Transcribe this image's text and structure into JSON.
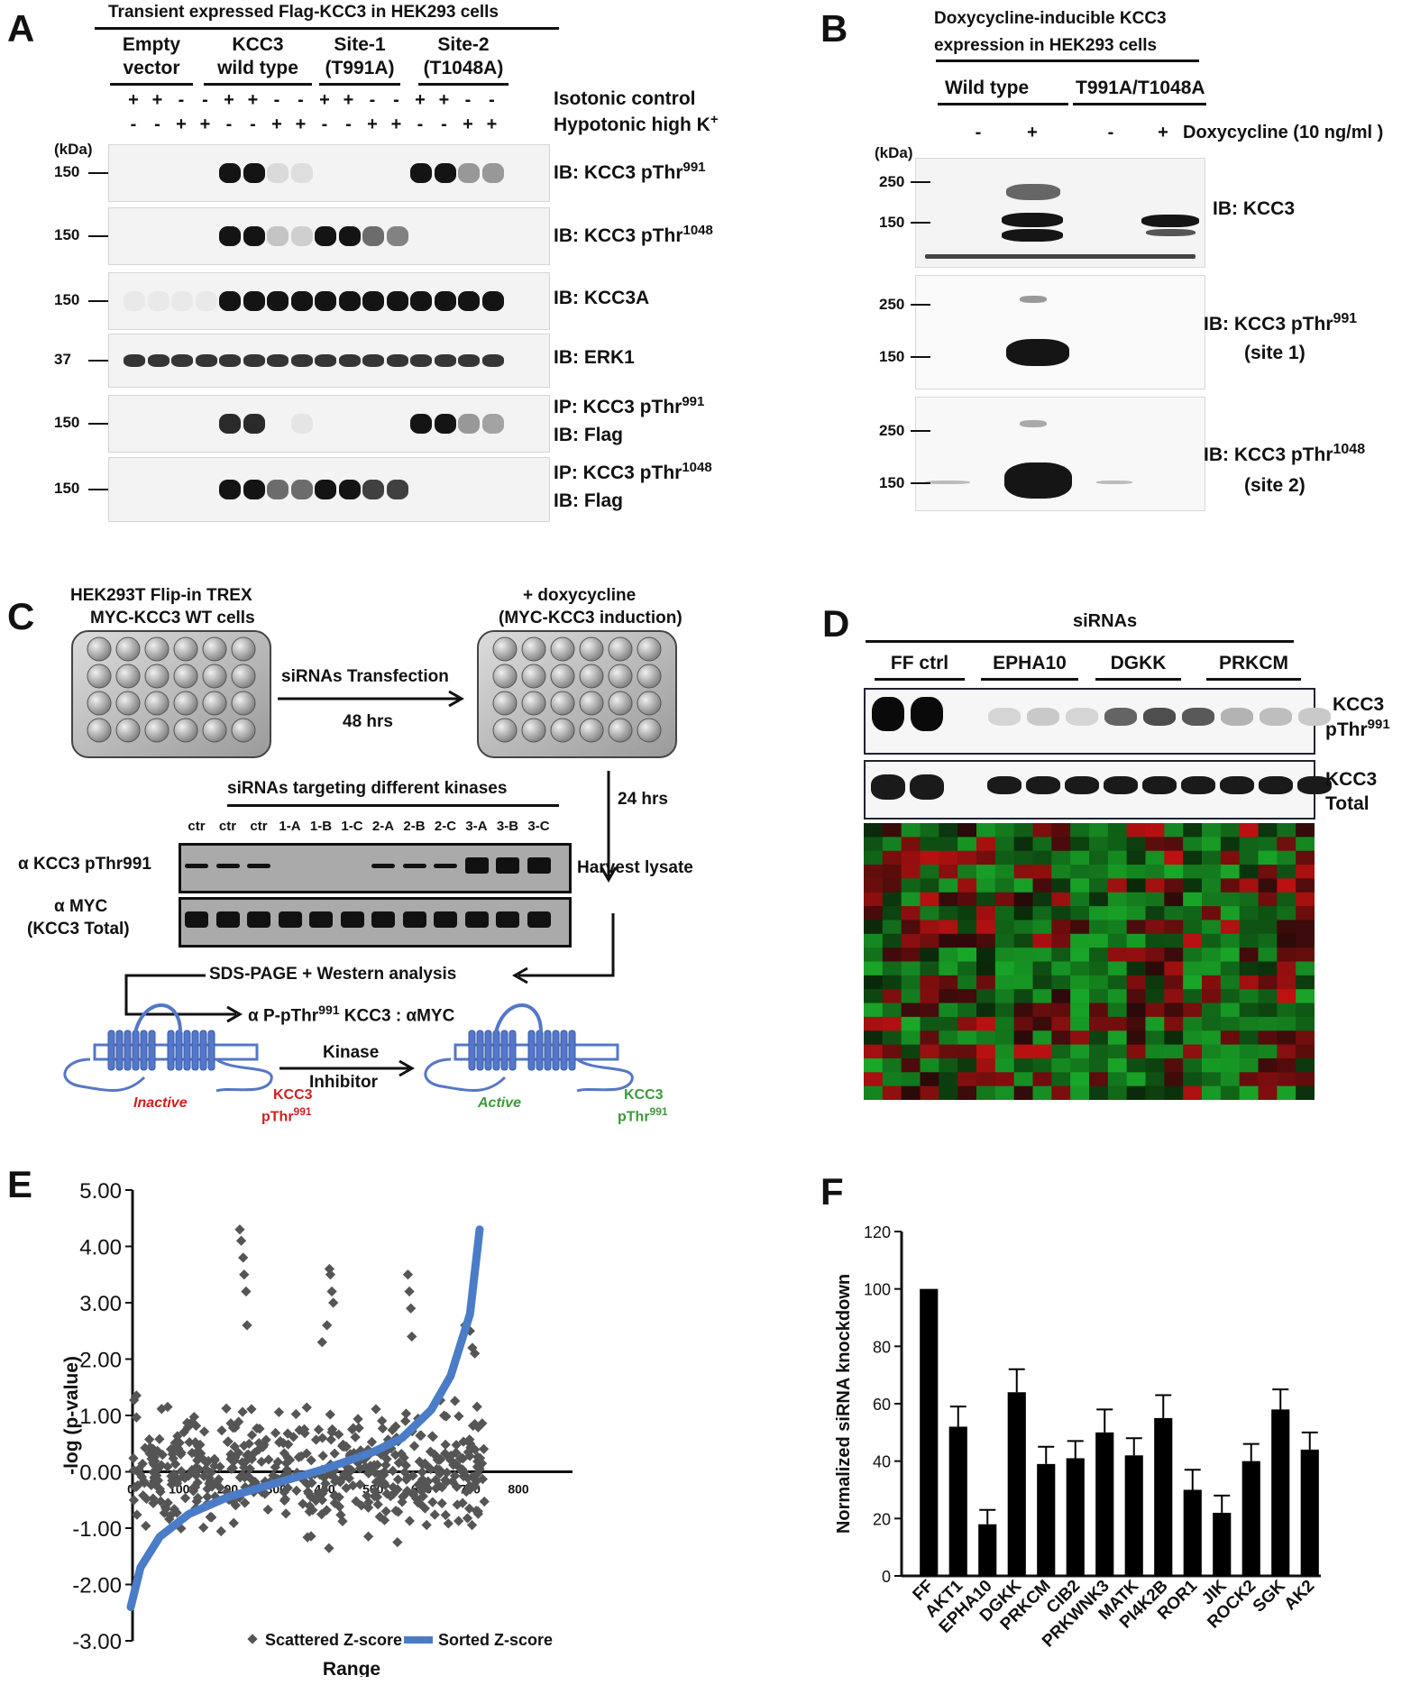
{
  "panels": {
    "A": "A",
    "B": "B",
    "C": "C",
    "D": "D",
    "E": "E",
    "F": "F"
  },
  "panel_a": {
    "title": "Transient expressed Flag-KCC3 in HEK293 cells",
    "groups": [
      {
        "line1": "Empty",
        "line2": "vector"
      },
      {
        "line1": "KCC3",
        "line2": "wild type"
      },
      {
        "line1": "Site-1",
        "line2": "(T991A)"
      },
      {
        "line1": "Site-2",
        "line2": "(T1048A)"
      }
    ],
    "isotonic_signs": [
      "+",
      "+",
      "-",
      "-",
      "+",
      "+",
      "-",
      "-",
      "+",
      "+",
      "-",
      "-",
      "+",
      "+",
      "-",
      "-"
    ],
    "hypotonic_signs": [
      "-",
      "-",
      "+",
      "+",
      "-",
      "-",
      "+",
      "+",
      "-",
      "-",
      "+",
      "+",
      "-",
      "-",
      "+",
      "+"
    ],
    "isotonic_label": "Isotonic control",
    "hypotonic_label": "Hypotonic high K",
    "hypotonic_sup": "+",
    "kda": "(kDa)",
    "blots": [
      {
        "marker": "150",
        "label": "IB: KCC3 pThr",
        "sup": "991",
        "intensity": [
          0,
          0,
          0,
          0,
          1,
          1,
          0.1,
          0.08,
          0,
          0,
          0,
          0,
          1,
          1,
          0.4,
          0.4
        ]
      },
      {
        "marker": "150",
        "label": "IB: KCC3 pThr",
        "sup": "1048",
        "intensity": [
          0,
          0,
          0,
          0,
          1,
          1,
          0.2,
          0.15,
          1,
          1,
          0.6,
          0.5,
          0,
          0,
          0,
          0
        ]
      },
      {
        "marker": "150",
        "label": "IB: KCC3A",
        "sup": "",
        "intensity": [
          0.03,
          0.03,
          0.03,
          0.03,
          1,
          1,
          1,
          1,
          1,
          1,
          1,
          1,
          1,
          1,
          1,
          1
        ]
      },
      {
        "marker": "37",
        "label": "IB: ERK1",
        "sup": "",
        "intensity": [
          0.85,
          0.85,
          0.85,
          0.85,
          0.85,
          0.85,
          0.85,
          0.85,
          0.85,
          0.85,
          0.85,
          0.85,
          0.85,
          0.85,
          0.85,
          0.85
        ]
      },
      {
        "marker": "150",
        "label": "IP: KCC3 pThr",
        "sup": "991",
        "label2": "IB: Flag",
        "intensity": [
          0,
          0,
          0,
          0,
          0.9,
          0.9,
          0,
          0.05,
          0,
          0,
          0,
          0,
          1,
          1,
          0.4,
          0.35
        ]
      },
      {
        "marker": "150",
        "label": "IP: KCC3 pThr",
        "sup": "1048",
        "label2": "IB: Flag",
        "intensity": [
          0,
          0,
          0,
          0,
          1,
          1,
          0.6,
          0.6,
          1,
          1,
          0.8,
          0.8,
          0,
          0,
          0,
          0
        ]
      }
    ]
  },
  "panel_b": {
    "title_l1": "Doxycycline-inducible KCC3",
    "title_l2": "expression in HEK293 cells",
    "group_wt": "Wild type",
    "group_mut": "T991A/T1048A",
    "dox_signs": [
      "-",
      "+",
      "-",
      "+"
    ],
    "dox_label": "Doxycycline (10 ng/ml )",
    "kda": "(kDa)",
    "blot1": {
      "markers": [
        "250",
        "150"
      ],
      "label": "IB: KCC3"
    },
    "blot2": {
      "markers": [
        "250",
        "150"
      ],
      "label": "IB: KCC3 pThr",
      "sup": "991",
      "sub": "(site 1)"
    },
    "blot3": {
      "markers": [
        "250",
        "150"
      ],
      "label": "IB: KCC3 pThr",
      "sup": "1048",
      "sub": "(site 2)"
    }
  },
  "panel_c": {
    "cells_l1": "HEK293T Flip-in TREX",
    "cells_l2": "MYC-KCC3 WT cells",
    "dox_l1": "+ doxycycline",
    "dox_l2": "(MYC-KCC3 induction)",
    "transfection": "siRNAs Transfection",
    "hrs48": "48 hrs",
    "hrs24": "24 hrs",
    "sirna_title": "siRNAs targeting different kinases",
    "lanes": [
      "ctr",
      "ctr",
      "ctr",
      "1-A",
      "1-B",
      "1-C",
      "2-A",
      "2-B",
      "2-C",
      "3-A",
      "3-B",
      "3-C"
    ],
    "row1": "α KCC3 pThr991",
    "row2_l1": "α MYC",
    "row2_l2": "(KCC3 Total)",
    "harvest": "Harvest lysate",
    "sds": "SDS-PAGE + Western analysis",
    "ratio_pre": "α P-pThr",
    "ratio_sup": "991",
    "ratio_post": " KCC3 : αMYC",
    "kinase": "Kinase",
    "inhibitor": "Inhibitor",
    "inactive": "Inactive",
    "active": "Active",
    "kcc3": "KCC3",
    "pthr": "pThr",
    "pthr_sup": "991",
    "red": "#d0201f",
    "green": "#3b9a3b",
    "protein_blue": "#5577c8"
  },
  "panel_d": {
    "title": "siRNAs",
    "groups": [
      "FF ctrl",
      "EPHA10",
      "DGKK",
      "PRKCM"
    ],
    "label1_l1": "KCC3",
    "label1_l2": "pThr",
    "label1_sup": "991",
    "label2_l1": "KCC3",
    "label2_l2": "Total"
  },
  "chart_data": [
    {
      "type": "scatter",
      "xlabel": "Range",
      "ylabel": "-log (p-value)",
      "xlim": [
        0,
        800
      ],
      "ylim": [
        -3,
        5
      ],
      "x_ticks": [
        "0",
        "100",
        "200",
        "300",
        "400",
        "500",
        "600",
        "700",
        "800"
      ],
      "y_ticks": [
        "5.00",
        "4.00",
        "3.00",
        "2.00",
        "1.00",
        "0.00",
        "-1.00",
        "-2.00",
        "-3.00"
      ],
      "series": [
        {
          "name": "Scattered Z-score",
          "color": "#555555"
        },
        {
          "name": "Sorted Z-score",
          "color": "#4a7cc7",
          "curve_x": [
            0,
            20,
            60,
            120,
            200,
            300,
            400,
            450,
            500,
            560,
            620,
            660,
            700,
            720
          ],
          "curve_y": [
            -2.4,
            -1.7,
            -1.15,
            -0.75,
            -0.45,
            -0.2,
            0.05,
            0.2,
            0.35,
            0.6,
            1.1,
            1.7,
            2.8,
            4.3
          ]
        }
      ],
      "notable_points": {
        "x": [
          225,
          228,
          232,
          234,
          238,
          410,
          412,
          415,
          418,
          572,
          575,
          578,
          240,
          405,
          395,
          580,
          690,
          700,
          705,
          710
        ],
        "y": [
          4.3,
          4.1,
          3.8,
          3.5,
          3.2,
          3.6,
          3.5,
          3.2,
          3.0,
          3.5,
          3.2,
          2.9,
          2.6,
          2.6,
          2.3,
          2.4,
          2.6,
          2.5,
          2.2,
          2.1
        ]
      }
    },
    {
      "type": "bar",
      "ylabel": "Normalized siRNA knockdown",
      "ylim": [
        0,
        120
      ],
      "y_ticks": [
        "0",
        "20",
        "40",
        "60",
        "80",
        "100",
        "120"
      ],
      "categories": [
        "FF",
        "AKT1",
        "EPHA10",
        "DGKK",
        "PRKCM",
        "CIB2",
        "PRKWNK3",
        "MATK",
        "PI4K2B",
        "ROR1",
        "JIK",
        "ROCK2",
        "SGK",
        "AK2"
      ],
      "values": [
        100,
        52,
        18,
        64,
        39,
        41,
        50,
        42,
        55,
        30,
        22,
        40,
        58,
        44
      ],
      "errors": [
        0,
        7,
        5,
        8,
        6,
        6,
        8,
        6,
        8,
        7,
        6,
        6,
        7,
        6
      ]
    }
  ]
}
